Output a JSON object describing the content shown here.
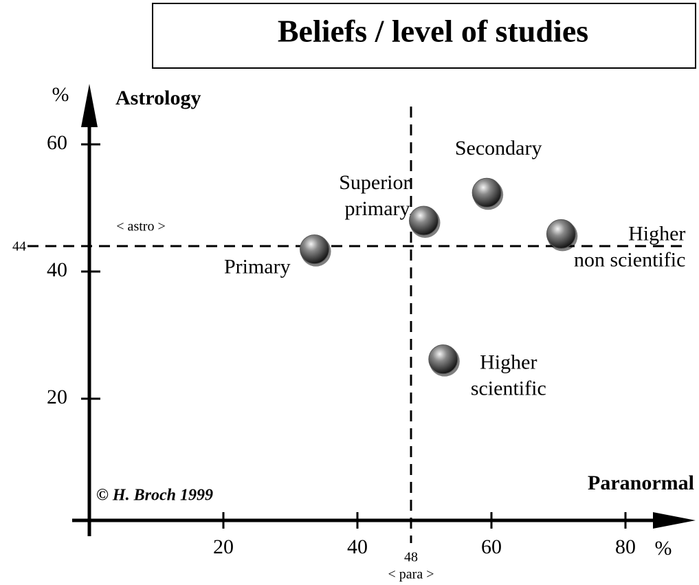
{
  "chart_data": {
    "type": "scatter",
    "title": "Beliefs / level of studies",
    "x_label": "Paranormal",
    "y_label": "Astrology",
    "x_unit": "%",
    "y_unit": "%",
    "credit": "© H. Broch 1999",
    "x": [
      33.6,
      49.9,
      59.3,
      70.4,
      52.8
    ],
    "values": [
      43.5,
      48,
      52.4,
      45.9,
      26.2
    ],
    "labels": [
      [
        "Primary"
      ],
      [
        "Superior",
        "primary"
      ],
      [
        "Secondary"
      ],
      [
        "Higher",
        "non scientific"
      ],
      [
        "Higher",
        "scientific"
      ]
    ],
    "color": "#555555",
    "xlim": [
      0,
      90
    ],
    "ylim": [
      0,
      69
    ],
    "xticks": [
      20,
      40,
      60,
      80
    ],
    "yticks": [
      20,
      40,
      60
    ],
    "reference_lines": [
      {
        "axis": "y",
        "value": 44,
        "label": "< astro >"
      },
      {
        "axis": "x",
        "value": 48,
        "label": "< para >"
      }
    ]
  }
}
